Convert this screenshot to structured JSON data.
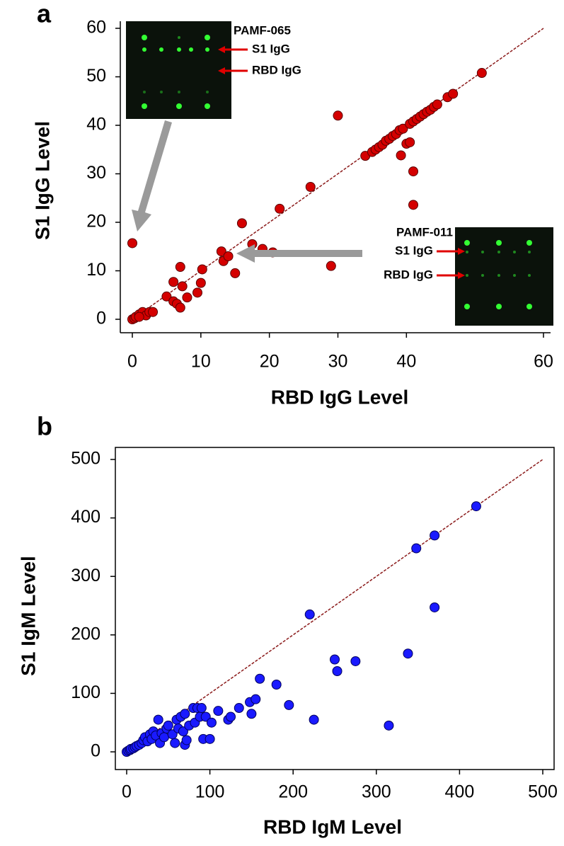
{
  "chart_data": [
    {
      "type": "scatter",
      "panel_label": "a",
      "xlabel": "RBD IgG Level",
      "ylabel": "S1 IgG Level",
      "xlim": [
        0,
        60
      ],
      "ylim": [
        0,
        60
      ],
      "xticks": [
        0,
        10,
        20,
        30,
        40,
        60
      ],
      "yticks": [
        0,
        10,
        20,
        30,
        40,
        50,
        60
      ],
      "color": "#d40000",
      "edge_color": "#5a0000",
      "line_color": "#8b1a1a",
      "annotations": [
        "PAMF-065",
        "S1 IgG",
        "RBD IgG",
        "PAMF-011",
        "S1 IgG",
        "RBD IgG"
      ],
      "x": [
        0,
        0,
        0.3,
        0.5,
        1,
        1.5,
        2,
        2.5,
        3,
        1,
        5,
        6,
        6,
        6.5,
        7,
        7,
        7.3,
        8,
        9.5,
        10,
        10.2,
        13,
        13.3,
        14,
        15,
        16,
        17.5,
        19,
        20.5,
        21.5,
        26,
        29,
        30,
        34,
        35,
        35.5,
        36,
        36.5,
        37,
        37.5,
        38,
        38.5,
        39,
        39.5,
        39.2,
        40,
        40.5,
        41,
        41,
        40.5,
        41,
        41.5,
        42,
        42.5,
        43,
        43.5,
        44,
        44.5,
        46,
        46.8,
        51
      ],
      "values": [
        15.7,
        0,
        0.2,
        0.5,
        1,
        1.5,
        0.8,
        1.5,
        1.5,
        0.5,
        4.7,
        7.7,
        3.7,
        3.2,
        2.4,
        10.8,
        6.8,
        4.5,
        5.5,
        7.5,
        10.3,
        14,
        12,
        13,
        9.5,
        19.8,
        15.5,
        14.5,
        13.8,
        22.8,
        27.3,
        11,
        42,
        33.7,
        34.5,
        35,
        35.5,
        36,
        36.8,
        37.2,
        37.8,
        38.2,
        39,
        39.3,
        33.8,
        36.2,
        36.5,
        30.5,
        23.6,
        40.3,
        40.8,
        41.3,
        41.8,
        42.3,
        42.8,
        43.2,
        43.8,
        44.3,
        45.8,
        46.5,
        50.8
      ]
    },
    {
      "type": "scatter",
      "panel_label": "b",
      "xlabel": "RBD IgM Level",
      "ylabel": "S1 IgM Level",
      "xlim": [
        0,
        500
      ],
      "ylim": [
        0,
        500
      ],
      "xticks": [
        0,
        100,
        200,
        300,
        400,
        500
      ],
      "yticks": [
        0,
        100,
        200,
        300,
        400,
        500
      ],
      "color": "#1a1aff",
      "edge_color": "#00005a",
      "line_color": "#8b1a1a",
      "x": [
        0,
        2,
        4,
        5,
        8,
        10,
        12,
        15,
        18,
        20,
        22,
        25,
        28,
        30,
        32,
        35,
        38,
        40,
        42,
        45,
        48,
        50,
        55,
        58,
        60,
        62,
        65,
        68,
        70,
        70,
        72,
        75,
        80,
        82,
        85,
        88,
        90,
        92,
        95,
        100,
        102,
        110,
        122,
        125,
        135,
        148,
        150,
        155,
        160,
        180,
        195,
        220,
        225,
        250,
        253,
        275,
        315,
        338,
        348,
        370,
        370,
        420
      ],
      "values": [
        0,
        2,
        3,
        5,
        6,
        8,
        10,
        12,
        15,
        20,
        25,
        18,
        30,
        22,
        35,
        28,
        55,
        15,
        32,
        25,
        40,
        45,
        30,
        15,
        55,
        40,
        60,
        35,
        65,
        12,
        20,
        45,
        75,
        50,
        75,
        60,
        75,
        22,
        60,
        22,
        50,
        70,
        55,
        60,
        75,
        85,
        65,
        90,
        125,
        115,
        80,
        235,
        55,
        158,
        138,
        155,
        45,
        168,
        348,
        370,
        247,
        420
      ]
    }
  ]
}
